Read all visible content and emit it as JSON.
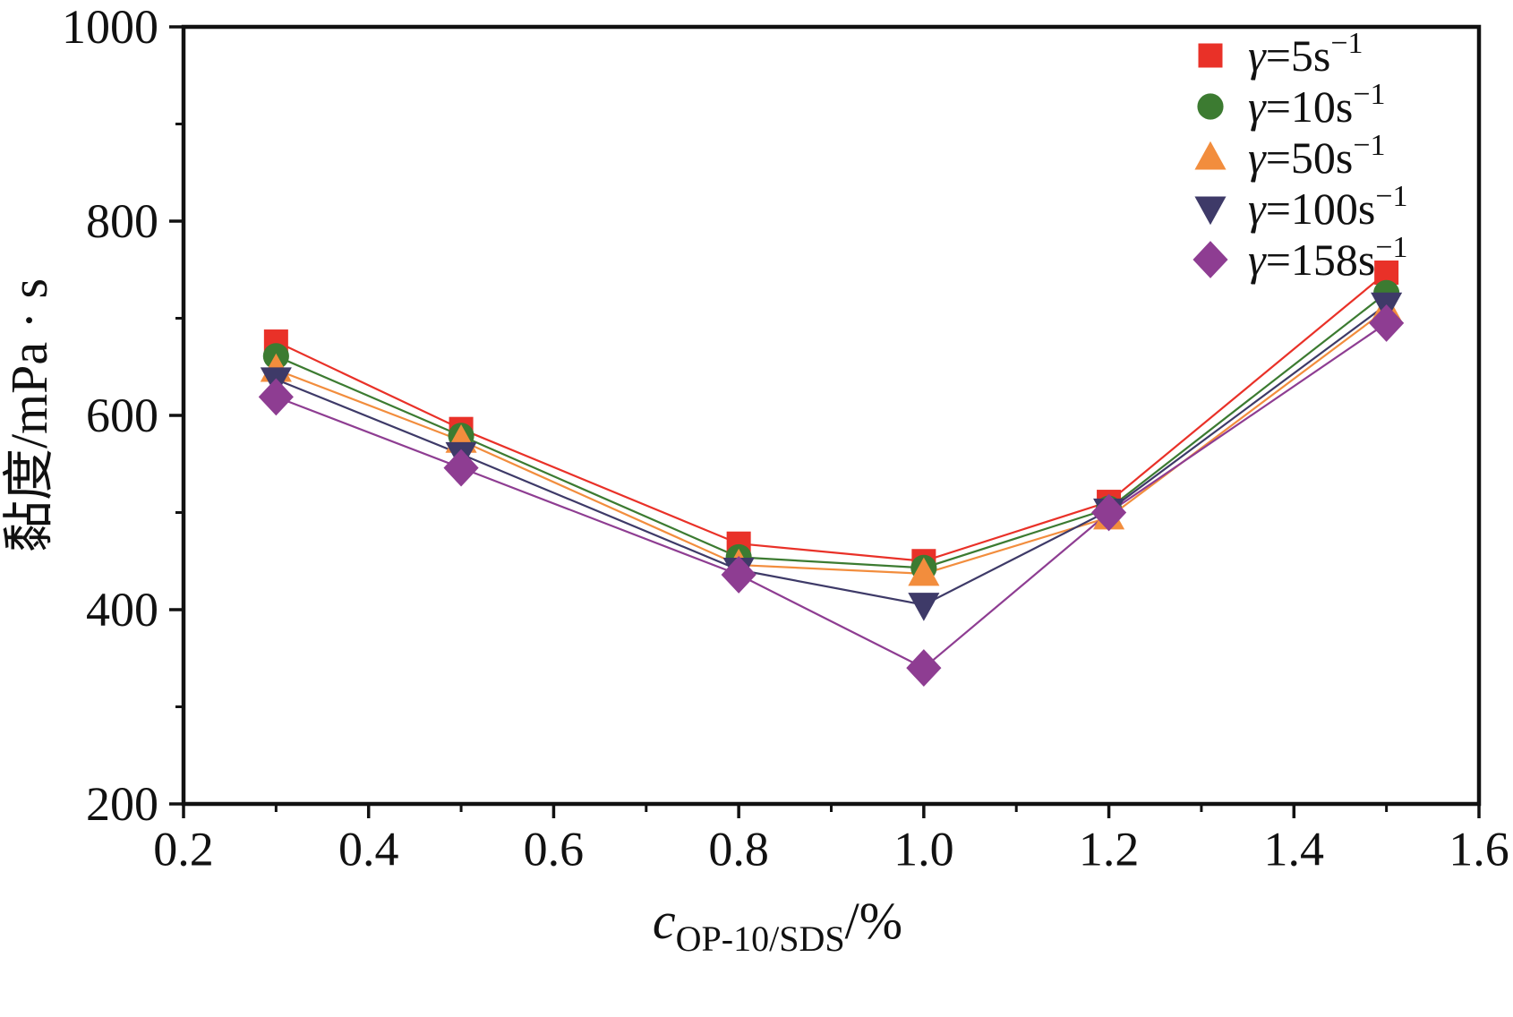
{
  "chart_data": {
    "type": "line",
    "title": "",
    "x": [
      0.3,
      0.5,
      0.8,
      1.0,
      1.2,
      1.5
    ],
    "series": [
      {
        "name": "γ=5s",
        "name_sup": "−1",
        "marker": "square",
        "color": "#e93128",
        "values": [
          676,
          586,
          468,
          450,
          511,
          747
        ]
      },
      {
        "name": "γ=10s",
        "name_sup": "−1",
        "marker": "circle",
        "color": "#3c7b31",
        "values": [
          661,
          579,
          454,
          443,
          504,
          726
        ]
      },
      {
        "name": "γ=50s",
        "name_sup": "−1",
        "marker": "triangle-up",
        "color": "#f28d3d",
        "values": [
          647,
          574,
          446,
          437,
          495,
          709
        ]
      },
      {
        "name": "γ=100s",
        "name_sup": "−1",
        "marker": "triangle-down",
        "color": "#3e3a68",
        "values": [
          637,
          560,
          441,
          405,
          502,
          714
        ]
      },
      {
        "name": "γ=158s",
        "name_sup": "−1",
        "marker": "diamond",
        "color": "#8e3d92",
        "values": [
          619,
          546,
          436,
          340,
          500,
          695
        ]
      }
    ],
    "xlabel": {
      "c_italic": "c",
      "sub": "OP-10/SDS",
      "suffix": "/%"
    },
    "ylabel": "黏度/mPa · s",
    "xlim": [
      0.2,
      1.6
    ],
    "ylim": [
      200,
      1000
    ],
    "xticks": [
      0.2,
      0.4,
      0.6,
      0.8,
      1.0,
      1.2,
      1.4,
      1.6
    ],
    "xtick_labels": [
      "0.2",
      "0.4",
      "0.6",
      "0.8",
      "1.0",
      "1.2",
      "1.4",
      "1.6"
    ],
    "yticks": [
      200,
      400,
      600,
      800,
      1000
    ],
    "ytick_labels": [
      "200",
      "400",
      "600",
      "800",
      "1000"
    ],
    "xminor": [
      0.3,
      0.5,
      0.7,
      0.9,
      1.1,
      1.3,
      1.5
    ],
    "yminor": [
      300,
      500,
      700,
      900
    ],
    "grid": false,
    "legend_position": "top-right"
  },
  "colors": {
    "axis": "#111111",
    "background": "#ffffff"
  }
}
